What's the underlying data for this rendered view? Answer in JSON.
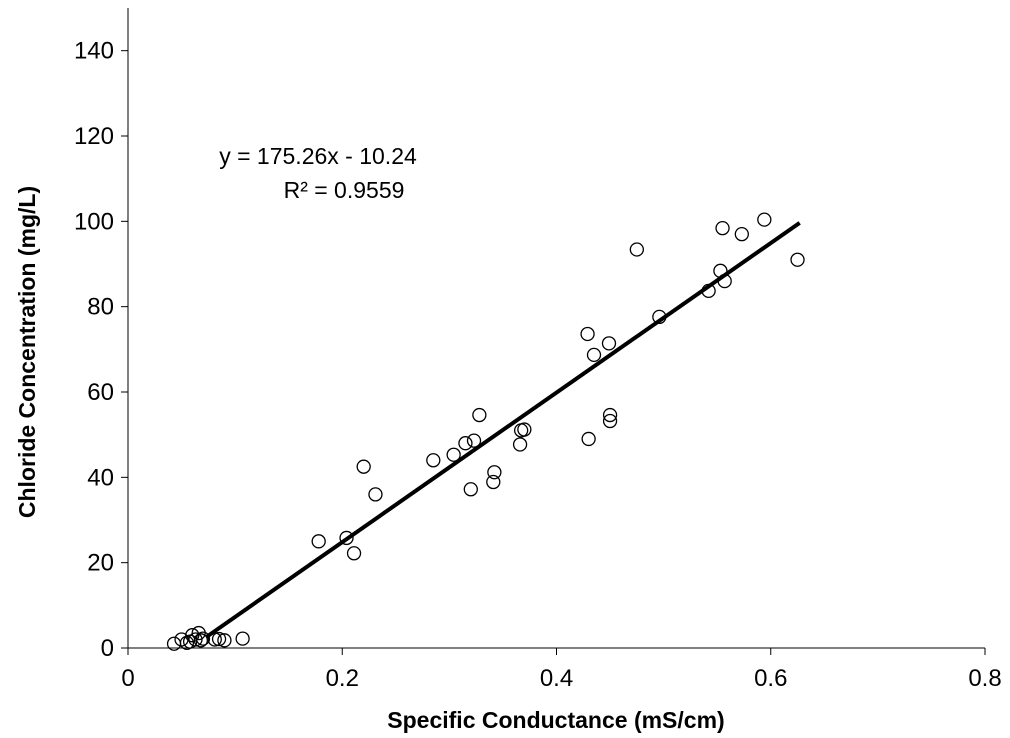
{
  "chart_data": {
    "type": "scatter",
    "title": "",
    "xlabel": "Specific Conductance (mS/cm)",
    "ylabel": "Chloride Concentration (mg/L)",
    "xlim": [
      0,
      0.8
    ],
    "ylim": [
      0,
      150
    ],
    "x_ticks": [
      0,
      0.2,
      0.4,
      0.6,
      0.8
    ],
    "x_tick_labels": [
      "0",
      "0.2",
      "0.4",
      "0.6",
      "0.8"
    ],
    "y_ticks": [
      0,
      20,
      40,
      60,
      80,
      100,
      120,
      140
    ],
    "y_tick_labels": [
      "0",
      "20",
      "40",
      "60",
      "80",
      "100",
      "120",
      "140"
    ],
    "grid": false,
    "legend": "none",
    "marker": "open-circle",
    "colors": {
      "marker": "#000000",
      "trendline": "#000000"
    },
    "points": [
      {
        "x": 0.043,
        "y": 1.0
      },
      {
        "x": 0.05,
        "y": 2.0
      },
      {
        "x": 0.055,
        "y": 1.2
      },
      {
        "x": 0.058,
        "y": 1.5
      },
      {
        "x": 0.06,
        "y": 3.0
      },
      {
        "x": 0.063,
        "y": 2.0
      },
      {
        "x": 0.066,
        "y": 3.5
      },
      {
        "x": 0.068,
        "y": 1.8
      },
      {
        "x": 0.07,
        "y": 2.2
      },
      {
        "x": 0.081,
        "y": 2.0
      },
      {
        "x": 0.085,
        "y": 2.1
      },
      {
        "x": 0.09,
        "y": 1.8
      },
      {
        "x": 0.107,
        "y": 2.2
      },
      {
        "x": 0.178,
        "y": 25.0
      },
      {
        "x": 0.204,
        "y": 25.8
      },
      {
        "x": 0.211,
        "y": 22.2
      },
      {
        "x": 0.22,
        "y": 42.5
      },
      {
        "x": 0.231,
        "y": 36.0
      },
      {
        "x": 0.285,
        "y": 44.0
      },
      {
        "x": 0.304,
        "y": 45.3
      },
      {
        "x": 0.315,
        "y": 48.0
      },
      {
        "x": 0.32,
        "y": 37.2
      },
      {
        "x": 0.323,
        "y": 48.6
      },
      {
        "x": 0.328,
        "y": 54.6
      },
      {
        "x": 0.341,
        "y": 38.9
      },
      {
        "x": 0.342,
        "y": 41.2
      },
      {
        "x": 0.366,
        "y": 47.7
      },
      {
        "x": 0.367,
        "y": 51.0
      },
      {
        "x": 0.37,
        "y": 51.2
      },
      {
        "x": 0.429,
        "y": 73.6
      },
      {
        "x": 0.43,
        "y": 49.0
      },
      {
        "x": 0.435,
        "y": 68.7
      },
      {
        "x": 0.449,
        "y": 71.4
      },
      {
        "x": 0.45,
        "y": 53.2
      },
      {
        "x": 0.45,
        "y": 54.6
      },
      {
        "x": 0.475,
        "y": 93.4
      },
      {
        "x": 0.496,
        "y": 77.6
      },
      {
        "x": 0.542,
        "y": 83.7
      },
      {
        "x": 0.553,
        "y": 88.4
      },
      {
        "x": 0.555,
        "y": 98.4
      },
      {
        "x": 0.557,
        "y": 86.0
      },
      {
        "x": 0.573,
        "y": 97.0
      },
      {
        "x": 0.594,
        "y": 100.4
      },
      {
        "x": 0.625,
        "y": 91.0
      }
    ],
    "trendline": {
      "type": "linear",
      "slope": 175.26,
      "intercept": -10.24,
      "x_range": [
        0.073,
        0.627
      ],
      "equation_label": "y = 175.26x - 10.24",
      "r2_label": "R² = 0.9559"
    }
  }
}
